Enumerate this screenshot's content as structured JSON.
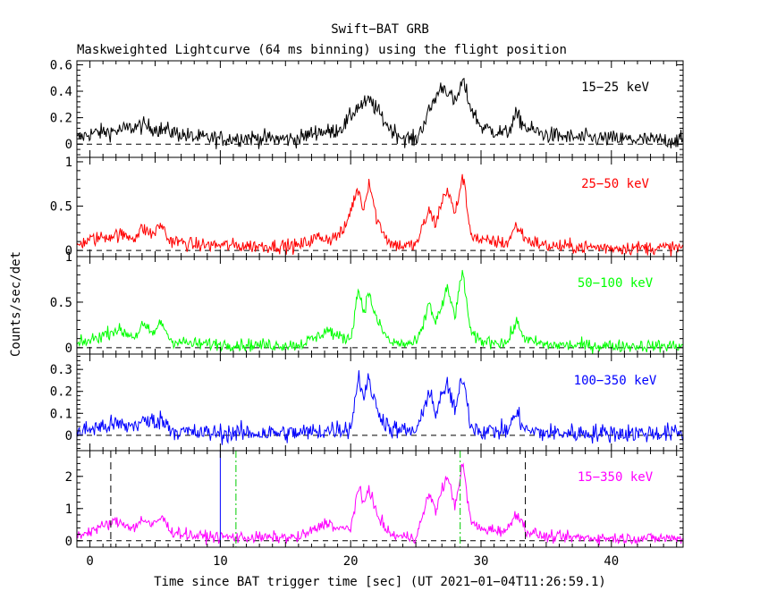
{
  "chart_data": {
    "type": "line",
    "title": "Swift−BAT GRB",
    "subtitle": "Maskweighted Lightcurve (64 ms binning) using the flight position",
    "xlabel": "Time since BAT trigger time [sec] (UT 2021−01−04T11:26:59.1)",
    "ylabel": "Counts/sec/det",
    "xlim": [
      -1.0,
      45.5
    ],
    "x_ticks": [
      0,
      10,
      20,
      30,
      40
    ],
    "markers": {
      "dashed_black": [
        1.6,
        33.4
      ],
      "solid_blue": [
        10.0
      ],
      "dashdot_green": [
        11.2,
        28.4
      ]
    },
    "panels": [
      {
        "name": "15−25 keV",
        "color": "#000000",
        "ylim": [
          -0.1,
          0.63
        ],
        "y_ticks": [
          0,
          0.2,
          0.4,
          0.6
        ],
        "y_tick_labels": [
          "0",
          "0.2",
          "0.4",
          "0.6"
        ],
        "noise": 0.032,
        "x": [
          -1,
          0,
          2,
          4,
          6,
          8,
          10,
          12,
          14,
          16,
          17.5,
          18.5,
          19.5,
          20.5,
          21,
          21.5,
          22,
          23,
          24,
          25,
          25.8,
          26.5,
          27,
          27.5,
          28,
          28.6,
          29.2,
          30,
          31,
          32,
          32.7,
          33.5,
          35,
          37,
          40,
          43,
          45.5
        ],
        "values": [
          0.04,
          0.08,
          0.1,
          0.14,
          0.1,
          0.05,
          0.04,
          0.05,
          0.04,
          0.04,
          0.1,
          0.09,
          0.14,
          0.28,
          0.3,
          0.33,
          0.26,
          0.12,
          0.05,
          0.03,
          0.2,
          0.35,
          0.44,
          0.4,
          0.3,
          0.48,
          0.28,
          0.13,
          0.1,
          0.08,
          0.22,
          0.12,
          0.07,
          0.05,
          0.04,
          0.03,
          0.03
        ]
      },
      {
        "name": "25−50 keV",
        "color": "#ff0000",
        "ylim": [
          -0.07,
          1.05
        ],
        "y_ticks": [
          0,
          0.5,
          1
        ],
        "y_tick_labels": [
          "0",
          "0.5",
          "1"
        ],
        "noise": 0.04,
        "x": [
          -1,
          0,
          2,
          3.5,
          4,
          4.8,
          5.5,
          6,
          8,
          10,
          12,
          14,
          16,
          17.5,
          18.5,
          19.5,
          20.2,
          20.6,
          21,
          21.4,
          22,
          23,
          24,
          25,
          25.5,
          26,
          26.5,
          27,
          27.4,
          28,
          28.6,
          29.2,
          30,
          31,
          32,
          32.7,
          33.5,
          35,
          40,
          45.5
        ],
        "values": [
          0.06,
          0.12,
          0.18,
          0.15,
          0.25,
          0.18,
          0.3,
          0.12,
          0.06,
          0.06,
          0.05,
          0.05,
          0.05,
          0.15,
          0.13,
          0.22,
          0.55,
          0.7,
          0.45,
          0.8,
          0.35,
          0.08,
          0.05,
          0.06,
          0.25,
          0.45,
          0.3,
          0.55,
          0.7,
          0.4,
          0.85,
          0.2,
          0.1,
          0.1,
          0.08,
          0.28,
          0.12,
          0.05,
          0.03,
          0.03
        ]
      },
      {
        "name": "50−100 keV",
        "color": "#00ff00",
        "ylim": [
          -0.07,
          1.0
        ],
        "y_ticks": [
          0,
          0.5,
          1
        ],
        "y_tick_labels": [
          "0",
          "0.5",
          "1"
        ],
        "noise": 0.035,
        "x": [
          -1,
          0,
          2,
          3.5,
          4,
          4.8,
          5.5,
          6.2,
          8,
          10,
          12,
          14,
          16,
          17.5,
          18.2,
          19,
          20,
          20.6,
          21,
          21.4,
          22,
          23,
          24,
          25,
          25.5,
          26,
          26.5,
          27,
          27.4,
          28,
          28.6,
          29.2,
          30,
          31,
          32,
          32.7,
          33.5,
          35,
          40,
          45.5
        ],
        "values": [
          0.03,
          0.08,
          0.2,
          0.12,
          0.25,
          0.15,
          0.28,
          0.08,
          0.04,
          0.04,
          0.03,
          0.03,
          0.03,
          0.12,
          0.2,
          0.12,
          0.1,
          0.65,
          0.4,
          0.6,
          0.3,
          0.06,
          0.04,
          0.05,
          0.2,
          0.5,
          0.28,
          0.45,
          0.65,
          0.35,
          0.85,
          0.15,
          0.07,
          0.07,
          0.05,
          0.28,
          0.08,
          0.03,
          0.02,
          0.02
        ]
      },
      {
        "name": "100−350 keV",
        "color": "#0000ff",
        "ylim": [
          -0.07,
          0.37
        ],
        "y_ticks": [
          0,
          0.1,
          0.2,
          0.3
        ],
        "y_tick_labels": [
          "0",
          "0.1",
          "0.2",
          "0.3"
        ],
        "noise": 0.022,
        "x": [
          -1,
          0,
          2,
          3,
          4,
          5.5,
          6.5,
          8,
          10,
          12,
          14,
          16,
          18,
          19,
          20,
          20.6,
          21,
          21.4,
          22,
          23,
          24,
          25,
          25.5,
          26,
          26.5,
          27,
          27.4,
          28,
          28.6,
          29.2,
          30,
          31,
          32,
          32.7,
          33.5,
          35,
          40,
          45.5
        ],
        "values": [
          0.01,
          0.03,
          0.05,
          0.04,
          0.06,
          0.07,
          0.02,
          0.01,
          0.01,
          0.01,
          0.01,
          0.01,
          0.02,
          0.03,
          0.03,
          0.27,
          0.18,
          0.25,
          0.12,
          0.03,
          0.02,
          0.02,
          0.08,
          0.22,
          0.1,
          0.17,
          0.24,
          0.1,
          0.28,
          0.05,
          0.02,
          0.02,
          0.02,
          0.1,
          0.02,
          0.01,
          0.01,
          0.01
        ]
      },
      {
        "name": "15−350 keV",
        "color": "#ff00ff",
        "ylim": [
          -0.2,
          2.8
        ],
        "y_ticks": [
          0,
          1,
          2
        ],
        "y_tick_labels": [
          "0",
          "1",
          "2"
        ],
        "noise": 0.09,
        "x": [
          -1,
          0,
          2,
          3.5,
          4,
          4.8,
          5.5,
          6.2,
          8,
          10,
          12,
          14,
          16,
          17.5,
          18.2,
          19,
          20,
          20.6,
          21,
          21.4,
          22,
          23,
          24,
          25,
          25.5,
          26,
          26.5,
          27,
          27.4,
          28,
          28.6,
          29.2,
          30,
          31,
          32,
          32.7,
          33.5,
          35,
          40,
          45.5
        ],
        "values": [
          0.15,
          0.3,
          0.6,
          0.4,
          0.7,
          0.45,
          0.75,
          0.3,
          0.15,
          0.12,
          0.1,
          0.1,
          0.1,
          0.4,
          0.6,
          0.35,
          0.4,
          1.65,
          1.1,
          1.7,
          0.8,
          0.2,
          0.12,
          0.12,
          0.7,
          1.5,
          0.9,
          1.6,
          2.0,
          1.1,
          2.4,
          0.6,
          0.35,
          0.35,
          0.3,
          0.9,
          0.3,
          0.12,
          0.08,
          0.08
        ]
      }
    ]
  }
}
